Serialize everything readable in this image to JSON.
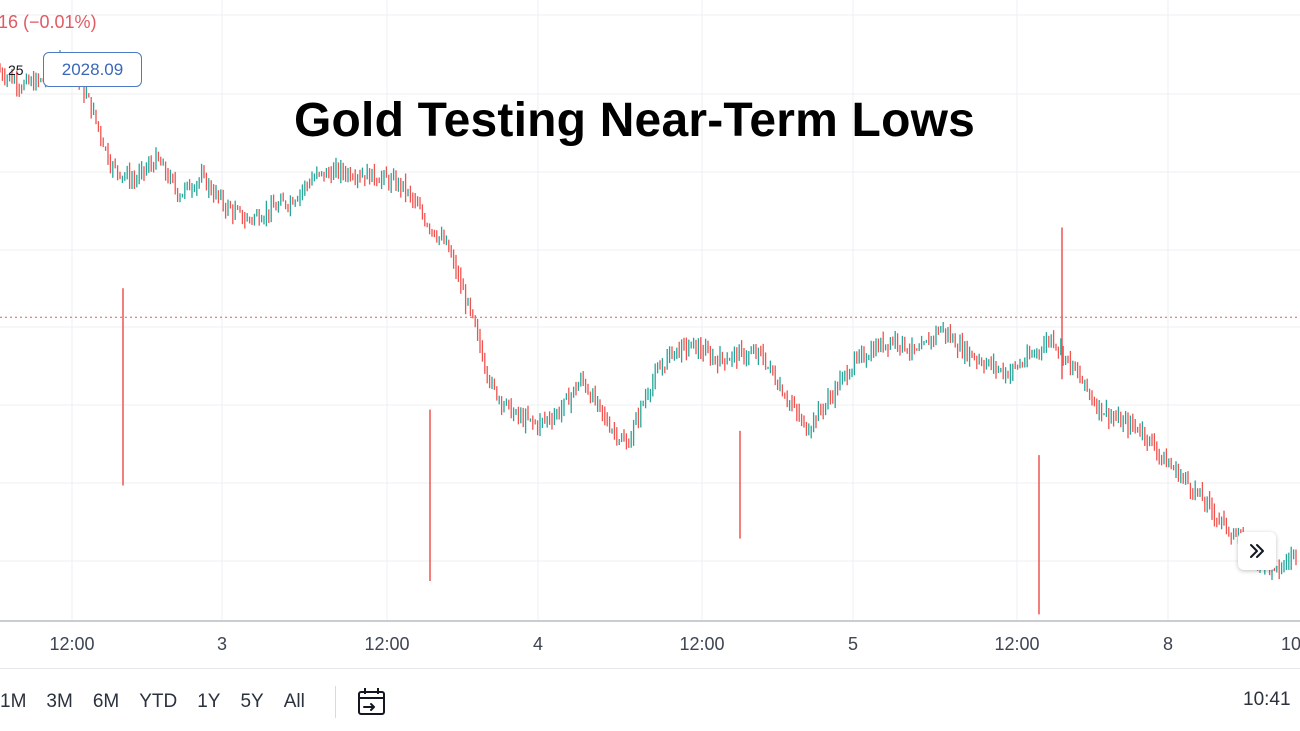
{
  "header": {
    "change_text": "16 (−0.01%)",
    "prev_label": "25",
    "price_box": "2028.09"
  },
  "title": "Gold Testing Near-Term Lows",
  "x_ticks": [
    "12:00",
    "3",
    "12:00",
    "4",
    "12:00",
    "5",
    "12:00",
    "8",
    "10"
  ],
  "range_buttons": [
    "1M",
    "3M",
    "6M",
    "YTD",
    "1Y",
    "5Y",
    "All"
  ],
  "clock": "10:41",
  "icons": {
    "scroll": "double-chevron-right-icon",
    "calendar": "calendar-goto-icon"
  },
  "colors": {
    "up": "#26a69a",
    "down": "#ef5350",
    "price_line": "#e05a63",
    "accent": "#3c67b8"
  },
  "chart_data": {
    "type": "line",
    "title": "Gold Testing Near-Term Lows",
    "x_tick_labels": [
      "12:00",
      "3",
      "12:00",
      "4",
      "12:00",
      "5",
      "12:00",
      "8",
      "10"
    ],
    "series": [
      {
        "values": [
          2044.3,
          2043.4,
          2043.7,
          2045.2,
          2042.2,
          2038.0,
          2037.1,
          2038.5,
          2036.2,
          2037.3,
          2035.5,
          2034.5,
          2035.1,
          2035.8,
          2037.3,
          2037.7,
          2037.6,
          2037.3,
          2036.7,
          2034.5,
          2032.7,
          2028.4,
          2023.4,
          2021.6,
          2021.0,
          2021.9,
          2024.0,
          2021.4,
          2019.6,
          2023.5,
          2025.8,
          2026.2,
          2025.3,
          2025.6,
          2025.6,
          2023.2,
          2020.7,
          2022.6,
          2024.8,
          2026.0,
          2026.7,
          2025.6,
          2027.4,
          2026.0,
          2025.1,
          2024.4,
          2025.4,
          2026.8,
          2024.6,
          2022.3,
          2021.2,
          2020.7,
          2018.7,
          2017.3,
          2015.6,
          2013.9,
          2012.5,
          2011.2,
          2012.8
        ],
        "up_color": "#26a69a",
        "down_color": "#ef5350"
      }
    ],
    "current_price": 2028.09,
    "ylim": [
      2008,
      2049
    ],
    "grid": true,
    "legend": "none"
  }
}
